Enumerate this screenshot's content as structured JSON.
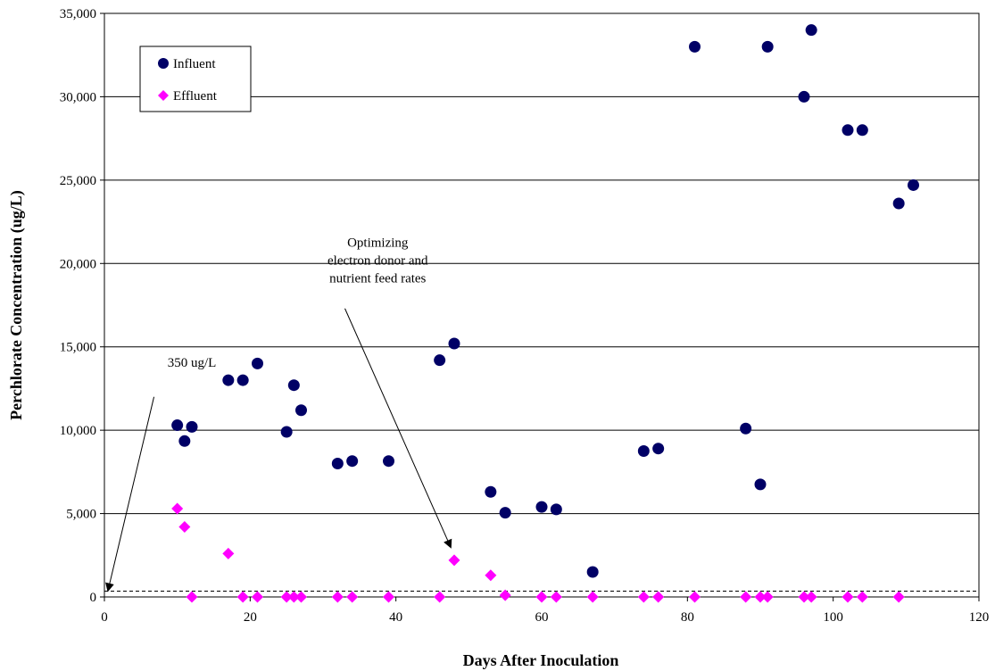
{
  "chart_data": {
    "type": "scatter",
    "xlabel": "Days After Inoculation",
    "ylabel": "Perchlorate Concentration (ug/L)",
    "xlim": [
      0,
      120
    ],
    "ylim": [
      0,
      35000
    ],
    "x_ticks": [
      "0",
      "20",
      "40",
      "60",
      "80",
      "100",
      "120"
    ],
    "y_ticks": [
      "0",
      "5,000",
      "10,000",
      "15,000",
      "20,000",
      "25,000",
      "30,000",
      "35,000"
    ],
    "grid": "horizontal",
    "legend_placement": "top-left",
    "series": [
      {
        "name": "Influent",
        "marker": "circle",
        "color": "#000066",
        "points": [
          [
            10,
            10300
          ],
          [
            11,
            9350
          ],
          [
            12,
            10200
          ],
          [
            17,
            13000
          ],
          [
            19,
            13000
          ],
          [
            21,
            14000
          ],
          [
            25,
            9900
          ],
          [
            26,
            12700
          ],
          [
            27,
            11200
          ],
          [
            32,
            8000
          ],
          [
            34,
            8150
          ],
          [
            39,
            8150
          ],
          [
            46,
            14200
          ],
          [
            48,
            15200
          ],
          [
            53,
            6300
          ],
          [
            55,
            5050
          ],
          [
            60,
            5400
          ],
          [
            62,
            5250
          ],
          [
            67,
            1500
          ],
          [
            74,
            8750
          ],
          [
            76,
            8900
          ],
          [
            81,
            33000
          ],
          [
            88,
            10100
          ],
          [
            90,
            6750
          ],
          [
            91,
            33000
          ],
          [
            96,
            30000
          ],
          [
            97,
            34000
          ],
          [
            102,
            28000
          ],
          [
            104,
            28000
          ],
          [
            109,
            23600
          ],
          [
            111,
            24700
          ]
        ]
      },
      {
        "name": "Effluent",
        "marker": "diamond",
        "color": "#FF00FF",
        "points": [
          [
            10,
            5300
          ],
          [
            11,
            4200
          ],
          [
            12,
            0
          ],
          [
            17,
            2600
          ],
          [
            19,
            0
          ],
          [
            21,
            0
          ],
          [
            25,
            0
          ],
          [
            26,
            0
          ],
          [
            27,
            0
          ],
          [
            32,
            0
          ],
          [
            34,
            0
          ],
          [
            39,
            0
          ],
          [
            46,
            0
          ],
          [
            48,
            2200
          ],
          [
            53,
            1300
          ],
          [
            55,
            100
          ],
          [
            60,
            0
          ],
          [
            62,
            0
          ],
          [
            67,
            0
          ],
          [
            74,
            0
          ],
          [
            76,
            0
          ],
          [
            81,
            0
          ],
          [
            88,
            0
          ],
          [
            90,
            0
          ],
          [
            91,
            0
          ],
          [
            96,
            0
          ],
          [
            97,
            0
          ],
          [
            102,
            0
          ],
          [
            104,
            0
          ],
          [
            109,
            0
          ]
        ]
      }
    ],
    "reference_line": {
      "y": 350,
      "style": "dashed"
    },
    "annotations": [
      {
        "text": [
          "350 ug/L"
        ],
        "text_anchor_data": [
          12,
          13800
        ],
        "arrow_from": [
          6.8,
          12000
        ],
        "arrow_to": [
          0.5,
          400
        ]
      },
      {
        "text": [
          "Optimizing",
          "electron donor and",
          "nutrient feed rates"
        ],
        "text_anchor_data": [
          37.5,
          21000
        ],
        "arrow_from": [
          33,
          17300
        ],
        "arrow_to": [
          47.5,
          3000
        ]
      }
    ]
  }
}
